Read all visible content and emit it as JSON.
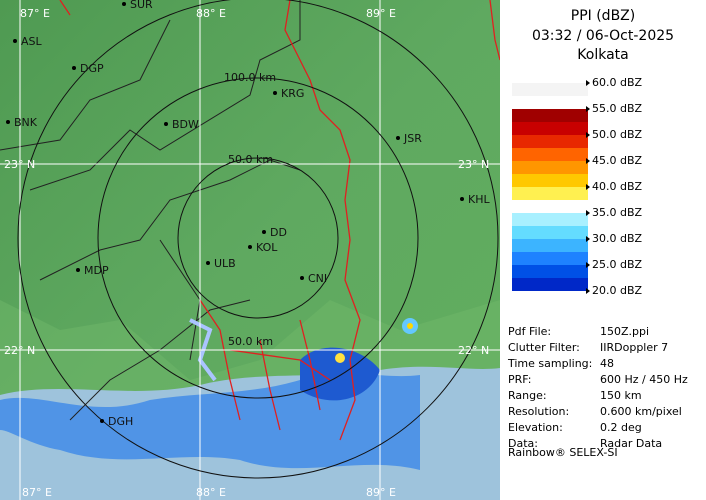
{
  "panel": {
    "title": "PPI (dBZ)",
    "time": "03:32 / 06-Oct-2025",
    "site": "Kolkata"
  },
  "legend": [
    {
      "label": "60.0 dBZ",
      "colors": [
        "#f4f4f4",
        "#ffffff"
      ]
    },
    {
      "label": "55.0 dBZ",
      "colors": [
        "#a00000",
        "#c80000"
      ]
    },
    {
      "label": "50.0 dBZ",
      "colors": [
        "#e82800",
        "#ff6400"
      ]
    },
    {
      "label": "45.0 dBZ",
      "colors": [
        "#ff9600",
        "#ffc800"
      ]
    },
    {
      "label": "40.0 dBZ",
      "colors": [
        "#fff050",
        "#ffffff"
      ]
    },
    {
      "label": "35.0 dBZ",
      "colors": [
        "#a8f0ff",
        "#64dcff"
      ]
    },
    {
      "label": "30.0 dBZ",
      "colors": [
        "#3cb4ff",
        "#1e82ff"
      ]
    },
    {
      "label": "25.0 dBZ",
      "colors": [
        "#0050e6",
        "#0028c8"
      ]
    },
    {
      "label": "20.0 dBZ",
      "colors": [
        "#0000a0",
        "#ffffff"
      ]
    }
  ],
  "info": [
    [
      "Pdf File:",
      "150Z.ppi"
    ],
    [
      "Clutter Filter:",
      "IIRDoppler 7"
    ],
    [
      "Time sampling:",
      "48"
    ],
    [
      "PRF:",
      "600 Hz / 450 Hz"
    ],
    [
      "Range:",
      "150 km"
    ],
    [
      "Resolution:",
      "0.600 km/pixel"
    ],
    [
      "Elevation:",
      "0.2 deg"
    ],
    [
      "Data:",
      "Radar Data"
    ]
  ],
  "footer": "Rainbow® SELEX-SI",
  "map": {
    "lon_top": [
      "87° E",
      "88° E",
      "89° E"
    ],
    "lon_bottom": [
      "87° E",
      "88° E",
      "89° E"
    ],
    "lat_left": [
      "23° N",
      "22° N"
    ],
    "lat_right": [
      "23° N",
      "22° N"
    ],
    "rings": [
      "100.0 km",
      "50.0 km",
      "50.0 km"
    ],
    "cities": [
      "SUR",
      "ASL",
      "DGP",
      "KRG",
      "BNK",
      "BDW",
      "JSR",
      "KHL",
      "DD",
      "KOL",
      "ULB",
      "MDP",
      "CNI",
      "DGH"
    ]
  }
}
